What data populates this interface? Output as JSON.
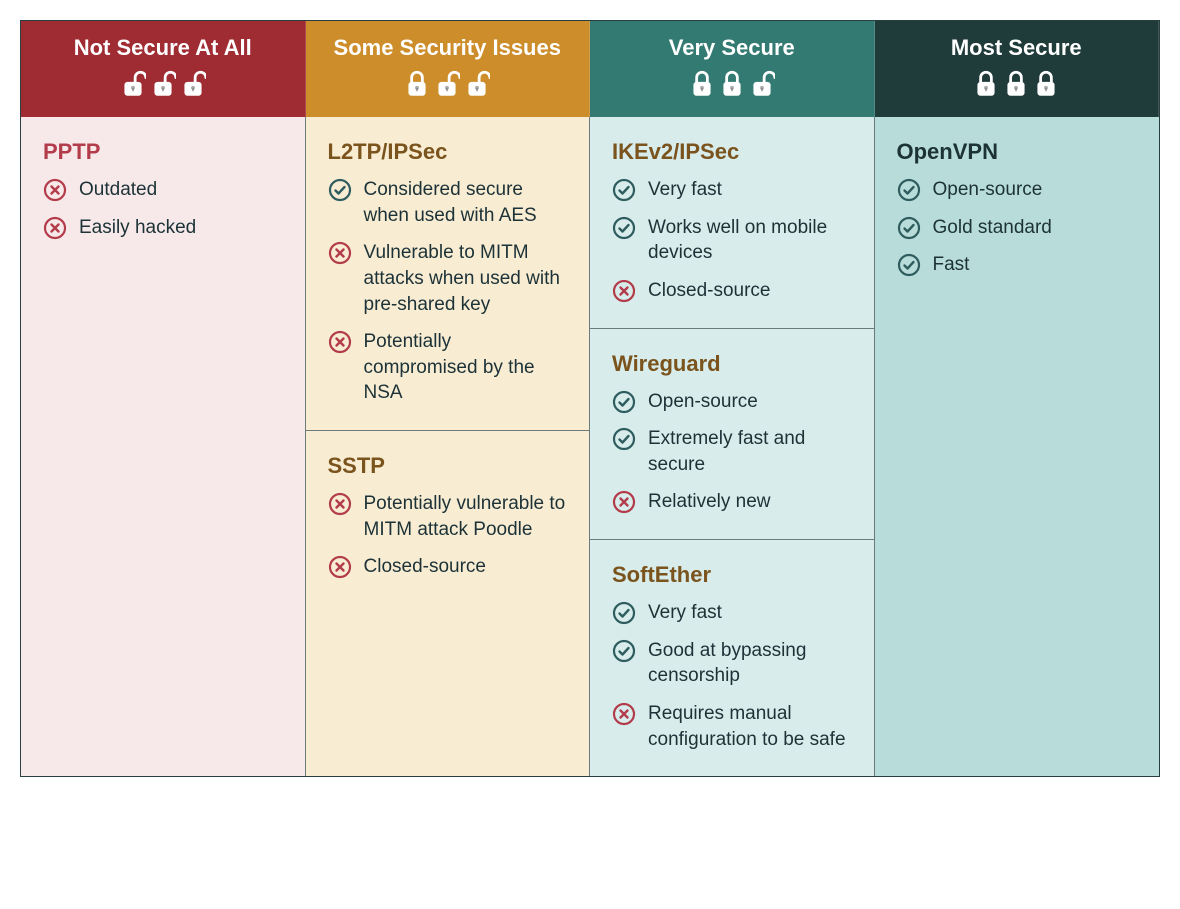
{
  "colors": {
    "text_dark": "#1c3237",
    "check_stroke": "#2f5d5f",
    "cross_stroke": "#b33c4b",
    "border": "#2a3f42"
  },
  "columns": [
    {
      "title": "Not Secure At All",
      "header_bg": "#9f2b33",
      "body_bg": "#f7e9ea",
      "title_color": "#b33c4b",
      "locks": [
        false,
        false,
        false
      ],
      "protocols": [
        {
          "name": "PPTP",
          "points": [
            {
              "type": "con",
              "text": "Outdated"
            },
            {
              "type": "con",
              "text": "Easily hacked"
            }
          ]
        }
      ]
    },
    {
      "title": "Some Security Issues",
      "header_bg": "#cc8d2a",
      "body_bg": "#f8ecd3",
      "title_color": "#7a531d",
      "locks": [
        true,
        false,
        false
      ],
      "protocols": [
        {
          "name": "L2TP/IPSec",
          "points": [
            {
              "type": "pro",
              "text": "Considered secure when used with AES"
            },
            {
              "type": "con",
              "text": "Vulnerable to MITM attacks when used with pre-shared key"
            },
            {
              "type": "con",
              "text": "Potentially compromised by the NSA"
            }
          ]
        },
        {
          "name": "SSTP",
          "points": [
            {
              "type": "con",
              "text": "Potentially vulnerable to MITM attack Poodle"
            },
            {
              "type": "con",
              "text": "Closed-source"
            }
          ]
        }
      ]
    },
    {
      "title": "Very Secure",
      "header_bg": "#337a72",
      "body_bg": "#d7eceb",
      "title_color": "#7a531d",
      "locks": [
        true,
        true,
        false
      ],
      "protocols": [
        {
          "name": "IKEv2/IPSec",
          "points": [
            {
              "type": "pro",
              "text": "Very fast"
            },
            {
              "type": "pro",
              "text": "Works well on mobile devices"
            },
            {
              "type": "con",
              "text": "Closed-source"
            }
          ]
        },
        {
          "name": "Wireguard",
          "points": [
            {
              "type": "pro",
              "text": "Open-source"
            },
            {
              "type": "pro",
              "text": "Extremely fast and secure"
            },
            {
              "type": "con",
              "text": "Relatively new"
            }
          ]
        },
        {
          "name": "SoftEther",
          "points": [
            {
              "type": "pro",
              "text": "Very fast"
            },
            {
              "type": "pro",
              "text": "Good at bypassing censorship"
            },
            {
              "type": "con",
              "text": "Requires manual configuration to be safe"
            }
          ]
        }
      ]
    },
    {
      "title": "Most Secure",
      "header_bg": "#1f3b3a",
      "body_bg": "#b8dcd9",
      "title_color": "#1c3237",
      "locks": [
        true,
        true,
        true
      ],
      "protocols": [
        {
          "name": "OpenVPN",
          "points": [
            {
              "type": "pro",
              "text": "Open-source"
            },
            {
              "type": "pro",
              "text": "Gold standard"
            },
            {
              "type": "pro",
              "text": "Fast"
            }
          ]
        }
      ]
    }
  ]
}
